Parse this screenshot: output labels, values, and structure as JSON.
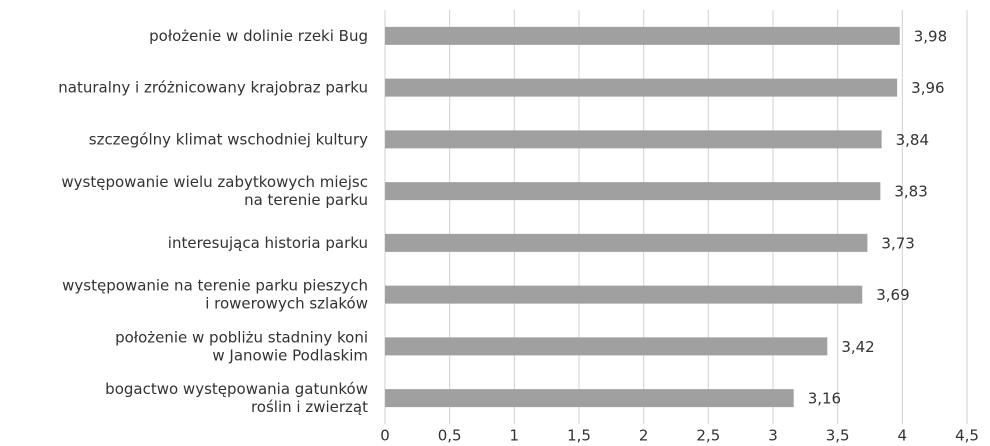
{
  "chart_data": {
    "type": "bar",
    "orientation": "horizontal",
    "categories": [
      "położenie w dolinie rzeki Bug",
      "naturalny i zróżnicowany krajobraz parku",
      "szczególny klimat wschodniej kultury",
      "występowanie wielu zabytkowych miejsc\nna terenie parku",
      "interesująca historia parku",
      "występowanie na terenie parku pieszych\ni rowerowych szlaków",
      "położenie w pobliżu stadniny koni\nw Janowie Podlaskim",
      "bogactwo występowania gatunków\nroślin i zwierząt"
    ],
    "values": [
      3.98,
      3.96,
      3.84,
      3.83,
      3.73,
      3.69,
      3.42,
      3.16
    ],
    "value_labels": [
      "3,98",
      "3,96",
      "3,84",
      "3,83",
      "3,73",
      "3,69",
      "3,42",
      "3,16"
    ],
    "color": "#a0a0a0",
    "xlim": [
      0,
      4.5
    ],
    "xticks": [
      0,
      {
        "value": 0.5,
        "label": "0,5"
      },
      1,
      {
        "value": 1.5,
        "label": "1,5"
      },
      2,
      {
        "value": 2.5,
        "label": "2,5"
      },
      3,
      {
        "value": 3.5,
        "label": "3,5"
      },
      4,
      {
        "value": 4.5,
        "label": "4,5"
      }
    ],
    "grid": true
  }
}
